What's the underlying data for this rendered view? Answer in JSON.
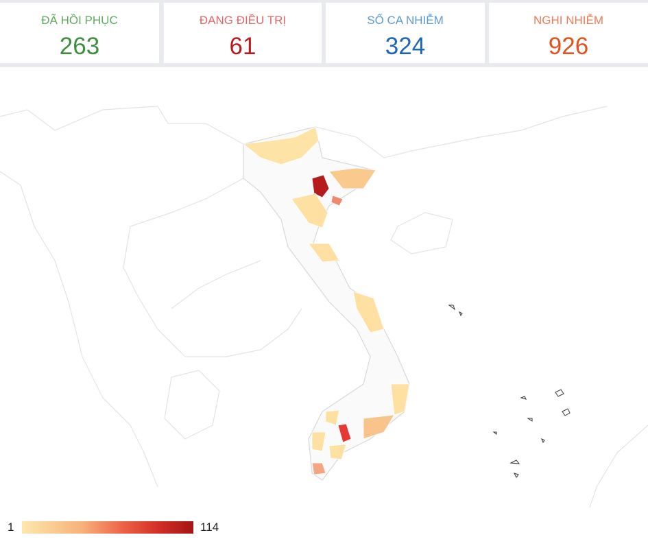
{
  "stats": [
    {
      "label": "ĐÃ HỒI PHỤC",
      "value": 263
    },
    {
      "label": "ĐANG ĐIỀU TRỊ",
      "value": 61
    },
    {
      "label": "SỐ CA NHIỄM",
      "value": 324
    },
    {
      "label": "NGHI NHIỄM",
      "value": 926
    }
  ],
  "legend": {
    "min": 1,
    "max": 114
  }
}
